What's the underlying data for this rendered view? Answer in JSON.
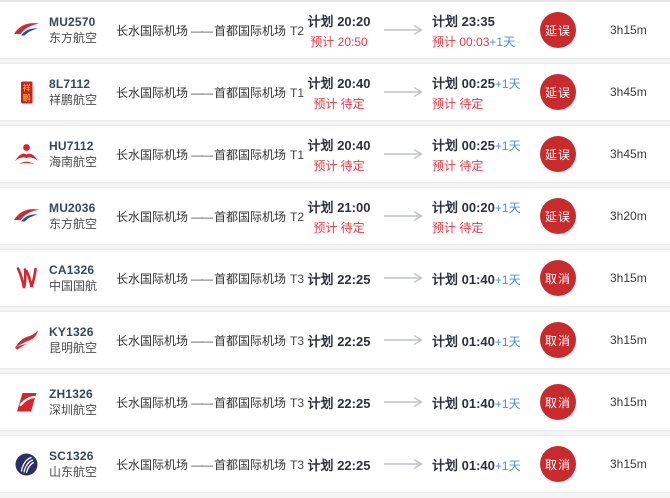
{
  "labels": {
    "plan": "计划",
    "estimate": "预计",
    "route_separator": "——"
  },
  "colors": {
    "badge_red": "#c92a2c",
    "estimate_red": "#e03c46",
    "day_plus_blue": "#4a8fe2"
  },
  "rows": [
    {
      "flight_no": "MU2570",
      "airline": "东方航空",
      "logo": "china-eastern-icon",
      "origin": "长水国际机场",
      "destination": "首都国际机场",
      "terminal": "T2",
      "dep": {
        "plan": "20:20",
        "est": "20:50",
        "est_plus": ""
      },
      "arr": {
        "plan": "23:35",
        "plan_plus": "",
        "est": "00:03",
        "est_plus": "+1天"
      },
      "status": "延误",
      "duration": "3h15m"
    },
    {
      "flight_no": "8L7112",
      "airline": "祥鹏航空",
      "logo": "lucky-air-icon",
      "origin": "长水国际机场",
      "destination": "首都国际机场",
      "terminal": "T1",
      "dep": {
        "plan": "20:40",
        "est": "待定",
        "est_plus": ""
      },
      "arr": {
        "plan": "00:25",
        "plan_plus": "+1天",
        "est": "待定",
        "est_plus": ""
      },
      "status": "延误",
      "duration": "3h45m"
    },
    {
      "flight_no": "HU7112",
      "airline": "海南航空",
      "logo": "hainan-icon",
      "origin": "长水国际机场",
      "destination": "首都国际机场",
      "terminal": "T1",
      "dep": {
        "plan": "20:40",
        "est": "待定",
        "est_plus": ""
      },
      "arr": {
        "plan": "00:25",
        "plan_plus": "+1天",
        "est": "待定",
        "est_plus": ""
      },
      "status": "延误",
      "duration": "3h45m"
    },
    {
      "flight_no": "MU2036",
      "airline": "东方航空",
      "logo": "china-eastern-icon",
      "origin": "长水国际机场",
      "destination": "首都国际机场",
      "terminal": "T2",
      "dep": {
        "plan": "21:00",
        "est": "待定",
        "est_plus": ""
      },
      "arr": {
        "plan": "00:20",
        "plan_plus": "+1天",
        "est": "待定",
        "est_plus": ""
      },
      "status": "延误",
      "duration": "3h20m"
    },
    {
      "flight_no": "CA1326",
      "airline": "中国国航",
      "logo": "air-china-icon",
      "origin": "长水国际机场",
      "destination": "首都国际机场",
      "terminal": "T3",
      "dep": {
        "plan": "22:25",
        "est": null,
        "est_plus": ""
      },
      "arr": {
        "plan": "01:40",
        "plan_plus": "+1天",
        "est": null,
        "est_plus": ""
      },
      "status": "取消",
      "duration": "3h15m"
    },
    {
      "flight_no": "KY1326",
      "airline": "昆明航空",
      "logo": "kunming-icon",
      "origin": "长水国际机场",
      "destination": "首都国际机场",
      "terminal": "T3",
      "dep": {
        "plan": "22:25",
        "est": null,
        "est_plus": ""
      },
      "arr": {
        "plan": "01:40",
        "plan_plus": "+1天",
        "est": null,
        "est_plus": ""
      },
      "status": "取消",
      "duration": "3h15m"
    },
    {
      "flight_no": "ZH1326",
      "airline": "深圳航空",
      "logo": "shenzhen-icon",
      "origin": "长水国际机场",
      "destination": "首都国际机场",
      "terminal": "T3",
      "dep": {
        "plan": "22:25",
        "est": null,
        "est_plus": ""
      },
      "arr": {
        "plan": "01:40",
        "plan_plus": "+1天",
        "est": null,
        "est_plus": ""
      },
      "status": "取消",
      "duration": "3h15m"
    },
    {
      "flight_no": "SC1326",
      "airline": "山东航空",
      "logo": "shandong-icon",
      "origin": "长水国际机场",
      "destination": "首都国际机场",
      "terminal": "T3",
      "dep": {
        "plan": "22:25",
        "est": null,
        "est_plus": ""
      },
      "arr": {
        "plan": "01:40",
        "plan_plus": "+1天",
        "est": null,
        "est_plus": ""
      },
      "status": "取消",
      "duration": "3h15m"
    }
  ]
}
